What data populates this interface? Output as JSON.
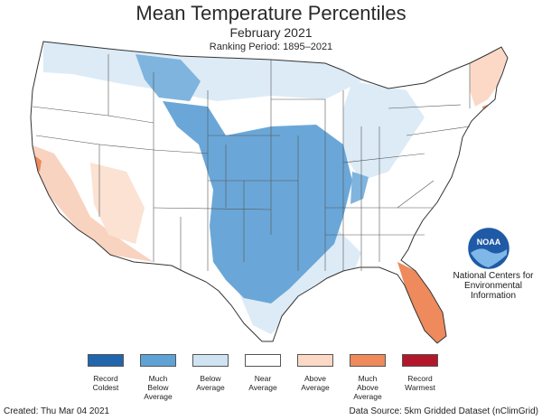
{
  "title": "Mean Temperature Percentiles",
  "subtitle": "February 2021",
  "ranking_period": "Ranking Period: 1895–2021",
  "agency": {
    "name_line1": "National Centers for",
    "name_line2": "Environmental",
    "name_line3": "Information",
    "logo_text": "NOAA",
    "logo_icon": "noaa-logo-icon"
  },
  "legend": [
    {
      "line1": "Record",
      "line2": "Coldest",
      "line3": "",
      "color": "#2166ac"
    },
    {
      "line1": "Much",
      "line2": "Below",
      "line3": "Average",
      "color": "#5fa2d6"
    },
    {
      "line1": "Below",
      "line2": "Average",
      "line3": "",
      "color": "#cfe3f3"
    },
    {
      "line1": "Near",
      "line2": "Average",
      "line3": "",
      "color": "#ffffff"
    },
    {
      "line1": "Above",
      "line2": "Average",
      "line3": "",
      "color": "#fbd9c6"
    },
    {
      "line1": "Much",
      "line2": "Above",
      "line3": "Average",
      "color": "#ee8a5c"
    },
    {
      "line1": "Record",
      "line2": "Warmest",
      "line3": "",
      "color": "#b2182b"
    }
  ],
  "footer": {
    "created": "Created: Thu Mar 04 2021",
    "source": "Data Source: 5km Gridded Dataset (nClimGrid)"
  }
}
